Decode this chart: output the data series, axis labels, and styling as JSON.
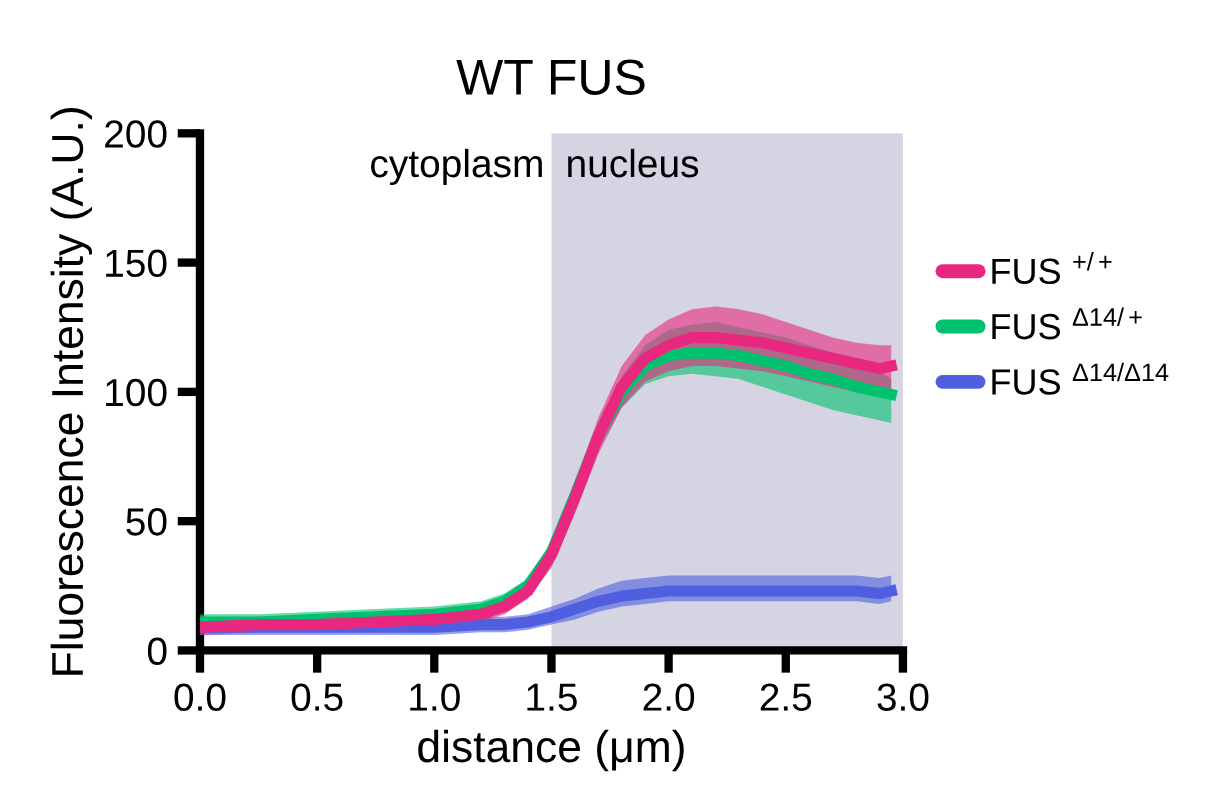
{
  "chart_data": {
    "type": "line",
    "title": "WT FUS",
    "xlabel": "distance (μm)",
    "ylabel": "Fluorescence Intensity (A.U.)",
    "xlim": [
      0,
      3.0
    ],
    "ylim": [
      0,
      200
    ],
    "xticks": [
      {
        "value": 0,
        "label": "0.0"
      },
      {
        "value": 0.5,
        "label": "0.5"
      },
      {
        "value": 1.0,
        "label": "1.0"
      },
      {
        "value": 1.5,
        "label": "1.5"
      },
      {
        "value": 2.0,
        "label": "2.0"
      },
      {
        "value": 2.5,
        "label": "2.5"
      },
      {
        "value": 3.0,
        "label": "3.0"
      }
    ],
    "yticks": [
      0,
      50,
      100,
      150,
      200
    ],
    "x": [
      0,
      0.25,
      0.5,
      0.75,
      1.0,
      1.2,
      1.3,
      1.4,
      1.5,
      1.6,
      1.7,
      1.8,
      1.9,
      2.0,
      2.1,
      2.2,
      2.3,
      2.4,
      2.5,
      2.6,
      2.7,
      2.8,
      2.9,
      2.95
    ],
    "series": [
      {
        "name": "FUS $^{+/+}$",
        "color": "#e8287f",
        "values": [
          9,
          10,
          10,
          11,
          12,
          14,
          17,
          23,
          37,
          59,
          83,
          102,
          113,
          118,
          121,
          121,
          120,
          119,
          117,
          115,
          113,
          111,
          109,
          110
        ],
        "lower": [
          6,
          7,
          7,
          8,
          9,
          11,
          14,
          20,
          32,
          53,
          76,
          94,
          104,
          108,
          110,
          110,
          109,
          108,
          106,
          104,
          102,
          100,
          98,
          100
        ],
        "upper": [
          12,
          13,
          13,
          14,
          15,
          17,
          20,
          27,
          42,
          65,
          90,
          110,
          122,
          128,
          132,
          133,
          132,
          130,
          127,
          124,
          121,
          119,
          118,
          118
        ]
      },
      {
        "name": "FUS $^{Δ14/+}$",
        "color": "#00c26e",
        "values": [
          11,
          11,
          12,
          13,
          14,
          16,
          19,
          25,
          38,
          60,
          83,
          100,
          110,
          114,
          115,
          115,
          114,
          112,
          110,
          107,
          105,
          102,
          100,
          99
        ],
        "lower": [
          8,
          8,
          9,
          10,
          11,
          13,
          16,
          22,
          34,
          55,
          78,
          94,
          103,
          106,
          107,
          106,
          105,
          102,
          99,
          96,
          93,
          91,
          89,
          88
        ],
        "upper": [
          14,
          14,
          15,
          16,
          17,
          19,
          22,
          28,
          42,
          65,
          88,
          106,
          118,
          124,
          126,
          127,
          125,
          123,
          121,
          118,
          115,
          112,
          108,
          105
        ]
      },
      {
        "name": "FUS $^{Δ14/Δ14}$",
        "color": "#4f5fe0",
        "values": [
          9,
          9,
          9,
          9,
          9,
          10,
          10,
          11,
          13,
          16,
          19,
          21,
          22,
          23,
          23,
          23,
          23,
          23,
          23,
          23,
          23,
          23,
          22,
          23
        ],
        "lower": [
          6,
          6,
          6,
          6,
          6,
          7,
          7,
          8,
          10,
          12,
          15,
          17,
          18,
          19,
          19,
          19,
          19,
          19,
          19,
          19,
          19,
          19,
          18,
          19
        ],
        "upper": [
          12,
          12,
          12,
          12,
          12,
          13,
          13,
          14,
          17,
          20,
          24,
          27,
          28,
          29,
          29,
          29,
          29,
          29,
          29,
          29,
          29,
          29,
          28,
          29
        ]
      }
    ],
    "bands": [
      {
        "axis": "x",
        "from": 1.5,
        "to": 3.0,
        "label": "nucleus",
        "color": "#d4d4e2"
      }
    ],
    "annotations": [
      "cytoplasm"
    ],
    "grid": false,
    "legend": "right",
    "marker": "none",
    "line_style": "solid"
  }
}
